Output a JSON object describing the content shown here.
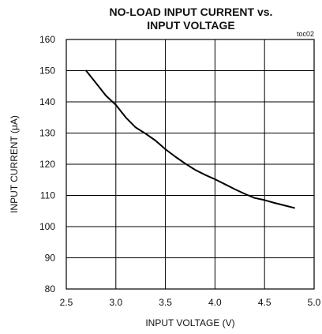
{
  "chart_data": {
    "type": "line",
    "title_line1": "NO-LOAD INPUT CURRENT vs.",
    "title_line2": "INPUT VOLTAGE",
    "tag": "toc02",
    "xlabel": "INPUT VOLTAGE (V)",
    "ylabel": "INPUT CURRENT (μA)",
    "xlim": [
      2.5,
      5.0
    ],
    "ylim": [
      80,
      160
    ],
    "xticks": [
      2.5,
      3.0,
      3.5,
      4.0,
      4.5,
      5.0
    ],
    "xtick_labels": [
      "2.5",
      "3.0",
      "3.5",
      "4.0",
      "4.5",
      "5.0"
    ],
    "yticks": [
      80,
      90,
      100,
      110,
      120,
      130,
      140,
      150,
      160
    ],
    "ytick_labels": [
      "80",
      "90",
      "100",
      "110",
      "120",
      "130",
      "140",
      "150",
      "160"
    ],
    "grid": true,
    "series": [
      {
        "x": [
          2.7,
          2.8,
          2.9,
          3.0,
          3.1,
          3.2,
          3.3,
          3.4,
          3.5,
          3.6,
          3.7,
          3.8,
          3.9,
          4.0,
          4.1,
          4.2,
          4.3,
          4.4,
          4.5,
          4.6,
          4.7,
          4.8
        ],
        "y": [
          150,
          146,
          142,
          139,
          135,
          131.8,
          129.8,
          127.6,
          124.8,
          122.4,
          120.2,
          118.2,
          116.6,
          115.2,
          113.6,
          112.0,
          110.5,
          109.2,
          108.5,
          107.6,
          106.8,
          106.0
        ]
      }
    ]
  }
}
